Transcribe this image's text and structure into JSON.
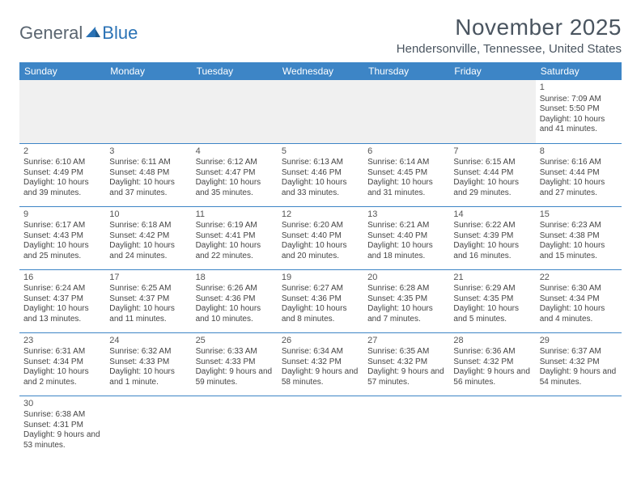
{
  "logo": {
    "text1": "General",
    "text2": "Blue"
  },
  "header": {
    "month_title": "November 2025",
    "location": "Hendersonville, Tennessee, United States"
  },
  "colors": {
    "header_bg": "#3d85c6",
    "header_text": "#ffffff",
    "border": "#3d85c6",
    "blank_bg": "#f0f0f0",
    "logo_gray": "#5a6570",
    "logo_blue": "#2a72b5"
  },
  "weekdays": [
    "Sunday",
    "Monday",
    "Tuesday",
    "Wednesday",
    "Thursday",
    "Friday",
    "Saturday"
  ],
  "days": {
    "1": {
      "sunrise": "Sunrise: 7:09 AM",
      "sunset": "Sunset: 5:50 PM",
      "daylight": "Daylight: 10 hours and 41 minutes."
    },
    "2": {
      "sunrise": "Sunrise: 6:10 AM",
      "sunset": "Sunset: 4:49 PM",
      "daylight": "Daylight: 10 hours and 39 minutes."
    },
    "3": {
      "sunrise": "Sunrise: 6:11 AM",
      "sunset": "Sunset: 4:48 PM",
      "daylight": "Daylight: 10 hours and 37 minutes."
    },
    "4": {
      "sunrise": "Sunrise: 6:12 AM",
      "sunset": "Sunset: 4:47 PM",
      "daylight": "Daylight: 10 hours and 35 minutes."
    },
    "5": {
      "sunrise": "Sunrise: 6:13 AM",
      "sunset": "Sunset: 4:46 PM",
      "daylight": "Daylight: 10 hours and 33 minutes."
    },
    "6": {
      "sunrise": "Sunrise: 6:14 AM",
      "sunset": "Sunset: 4:45 PM",
      "daylight": "Daylight: 10 hours and 31 minutes."
    },
    "7": {
      "sunrise": "Sunrise: 6:15 AM",
      "sunset": "Sunset: 4:44 PM",
      "daylight": "Daylight: 10 hours and 29 minutes."
    },
    "8": {
      "sunrise": "Sunrise: 6:16 AM",
      "sunset": "Sunset: 4:44 PM",
      "daylight": "Daylight: 10 hours and 27 minutes."
    },
    "9": {
      "sunrise": "Sunrise: 6:17 AM",
      "sunset": "Sunset: 4:43 PM",
      "daylight": "Daylight: 10 hours and 25 minutes."
    },
    "10": {
      "sunrise": "Sunrise: 6:18 AM",
      "sunset": "Sunset: 4:42 PM",
      "daylight": "Daylight: 10 hours and 24 minutes."
    },
    "11": {
      "sunrise": "Sunrise: 6:19 AM",
      "sunset": "Sunset: 4:41 PM",
      "daylight": "Daylight: 10 hours and 22 minutes."
    },
    "12": {
      "sunrise": "Sunrise: 6:20 AM",
      "sunset": "Sunset: 4:40 PM",
      "daylight": "Daylight: 10 hours and 20 minutes."
    },
    "13": {
      "sunrise": "Sunrise: 6:21 AM",
      "sunset": "Sunset: 4:40 PM",
      "daylight": "Daylight: 10 hours and 18 minutes."
    },
    "14": {
      "sunrise": "Sunrise: 6:22 AM",
      "sunset": "Sunset: 4:39 PM",
      "daylight": "Daylight: 10 hours and 16 minutes."
    },
    "15": {
      "sunrise": "Sunrise: 6:23 AM",
      "sunset": "Sunset: 4:38 PM",
      "daylight": "Daylight: 10 hours and 15 minutes."
    },
    "16": {
      "sunrise": "Sunrise: 6:24 AM",
      "sunset": "Sunset: 4:37 PM",
      "daylight": "Daylight: 10 hours and 13 minutes."
    },
    "17": {
      "sunrise": "Sunrise: 6:25 AM",
      "sunset": "Sunset: 4:37 PM",
      "daylight": "Daylight: 10 hours and 11 minutes."
    },
    "18": {
      "sunrise": "Sunrise: 6:26 AM",
      "sunset": "Sunset: 4:36 PM",
      "daylight": "Daylight: 10 hours and 10 minutes."
    },
    "19": {
      "sunrise": "Sunrise: 6:27 AM",
      "sunset": "Sunset: 4:36 PM",
      "daylight": "Daylight: 10 hours and 8 minutes."
    },
    "20": {
      "sunrise": "Sunrise: 6:28 AM",
      "sunset": "Sunset: 4:35 PM",
      "daylight": "Daylight: 10 hours and 7 minutes."
    },
    "21": {
      "sunrise": "Sunrise: 6:29 AM",
      "sunset": "Sunset: 4:35 PM",
      "daylight": "Daylight: 10 hours and 5 minutes."
    },
    "22": {
      "sunrise": "Sunrise: 6:30 AM",
      "sunset": "Sunset: 4:34 PM",
      "daylight": "Daylight: 10 hours and 4 minutes."
    },
    "23": {
      "sunrise": "Sunrise: 6:31 AM",
      "sunset": "Sunset: 4:34 PM",
      "daylight": "Daylight: 10 hours and 2 minutes."
    },
    "24": {
      "sunrise": "Sunrise: 6:32 AM",
      "sunset": "Sunset: 4:33 PM",
      "daylight": "Daylight: 10 hours and 1 minute."
    },
    "25": {
      "sunrise": "Sunrise: 6:33 AM",
      "sunset": "Sunset: 4:33 PM",
      "daylight": "Daylight: 9 hours and 59 minutes."
    },
    "26": {
      "sunrise": "Sunrise: 6:34 AM",
      "sunset": "Sunset: 4:32 PM",
      "daylight": "Daylight: 9 hours and 58 minutes."
    },
    "27": {
      "sunrise": "Sunrise: 6:35 AM",
      "sunset": "Sunset: 4:32 PM",
      "daylight": "Daylight: 9 hours and 57 minutes."
    },
    "28": {
      "sunrise": "Sunrise: 6:36 AM",
      "sunset": "Sunset: 4:32 PM",
      "daylight": "Daylight: 9 hours and 56 minutes."
    },
    "29": {
      "sunrise": "Sunrise: 6:37 AM",
      "sunset": "Sunset: 4:32 PM",
      "daylight": "Daylight: 9 hours and 54 minutes."
    },
    "30": {
      "sunrise": "Sunrise: 6:38 AM",
      "sunset": "Sunset: 4:31 PM",
      "daylight": "Daylight: 9 hours and 53 minutes."
    }
  },
  "layout": {
    "first_weekday_index": 6,
    "num_days": 30
  }
}
